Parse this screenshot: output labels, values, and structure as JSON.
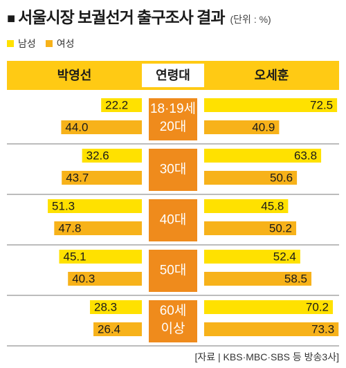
{
  "title": "서울시장 보궐선거 출구조사 결과",
  "unit": "(단위 : %)",
  "source": "[자료 | KBS·MBC·SBS 등 방송3사]",
  "legend": [
    {
      "label": "남성",
      "color": "#ffe100"
    },
    {
      "label": "여성",
      "color": "#f7b21a"
    }
  ],
  "colors": {
    "header_bg": "#ffca14",
    "center_label_bg": "#ef8b1c",
    "male": "#ffe100",
    "female": "#f7b21a",
    "divider": "#7a7a7a"
  },
  "chart_data": {
    "type": "bar",
    "headers": {
      "left": "박영선",
      "center": "연령대",
      "right": "오세훈"
    },
    "categories": [
      "18·19세\n20대",
      "30대",
      "40대",
      "50대",
      "60세\n이상"
    ],
    "series": [
      {
        "name": "남성",
        "candidate": "박영선",
        "values": [
          22.2,
          32.6,
          51.3,
          45.1,
          28.3
        ]
      },
      {
        "name": "여성",
        "candidate": "박영선",
        "values": [
          44.0,
          43.7,
          47.8,
          40.3,
          26.4
        ]
      },
      {
        "name": "남성",
        "candidate": "오세훈",
        "values": [
          72.5,
          63.8,
          45.8,
          52.4,
          70.2
        ]
      },
      {
        "name": "여성",
        "candidate": "오세훈",
        "values": [
          40.9,
          50.6,
          50.2,
          58.5,
          73.3
        ]
      }
    ],
    "value_labels": {
      "park_male": [
        "22.2",
        "32.6",
        "51.3",
        "45.1",
        "28.3"
      ],
      "park_female": [
        "44.0",
        "43.7",
        "47.8",
        "40.3",
        "26.4"
      ],
      "oh_male": [
        "72.5",
        "63.8",
        "45.8",
        "52.4",
        "70.2"
      ],
      "oh_female": [
        "40.9",
        "50.6",
        "50.2",
        "58.5",
        "73.3"
      ]
    }
  }
}
